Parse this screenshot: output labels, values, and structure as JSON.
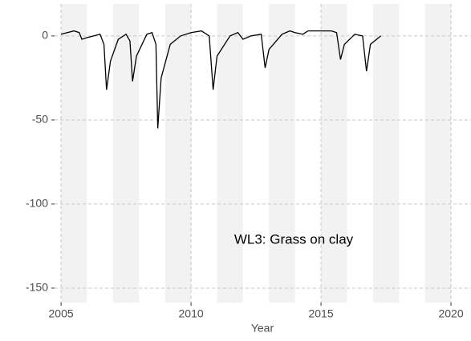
{
  "chart_data": {
    "type": "line",
    "xlabel": "Year",
    "annotation": "WL3: Grass on clay",
    "x": [
      2005.0,
      2005.5,
      2005.7,
      2005.8,
      2006.0,
      2006.5,
      2006.65,
      2006.75,
      2006.9,
      2007.2,
      2007.5,
      2007.65,
      2007.75,
      2007.9,
      2008.3,
      2008.5,
      2008.65,
      2008.72,
      2008.85,
      2009.2,
      2009.6,
      2010.0,
      2010.4,
      2010.7,
      2010.85,
      2011.0,
      2011.5,
      2011.8,
      2012.0,
      2012.3,
      2012.7,
      2012.85,
      2013.0,
      2013.5,
      2013.8,
      2014.0,
      2014.3,
      2014.5,
      2015.0,
      2015.4,
      2015.6,
      2015.75,
      2015.9,
      2016.3,
      2016.6,
      2016.75,
      2016.9,
      2017.3
    ],
    "series": [
      {
        "color": "#000000",
        "values": [
          1,
          3,
          2,
          -2,
          -1,
          1,
          -5,
          -32,
          -15,
          -2,
          1,
          -3,
          -27,
          -12,
          1,
          2,
          -5,
          -55,
          -25,
          -5,
          0,
          2,
          3,
          0,
          -32,
          -12,
          0,
          2,
          -2,
          0,
          1,
          -19,
          -8,
          1,
          3,
          2,
          1,
          3,
          3,
          3,
          2,
          -14,
          -5,
          1,
          0,
          -21,
          -5,
          0
        ]
      }
    ],
    "xlim": [
      2004.75,
      2020.77
    ],
    "ylim": [
      -158.6,
      19
    ],
    "xticks": [
      2005,
      2010,
      2015,
      2020
    ],
    "yticks": [
      0,
      -50,
      -100,
      -150
    ],
    "grid": true,
    "shaded_bands": [
      [
        2005,
        2006
      ],
      [
        2007,
        2008
      ],
      [
        2009,
        2010
      ],
      [
        2011,
        2012
      ],
      [
        2013,
        2014
      ],
      [
        2015,
        2016
      ],
      [
        2017,
        2018
      ],
      [
        2019,
        2020
      ]
    ],
    "band_color": "#f2f2f2"
  }
}
